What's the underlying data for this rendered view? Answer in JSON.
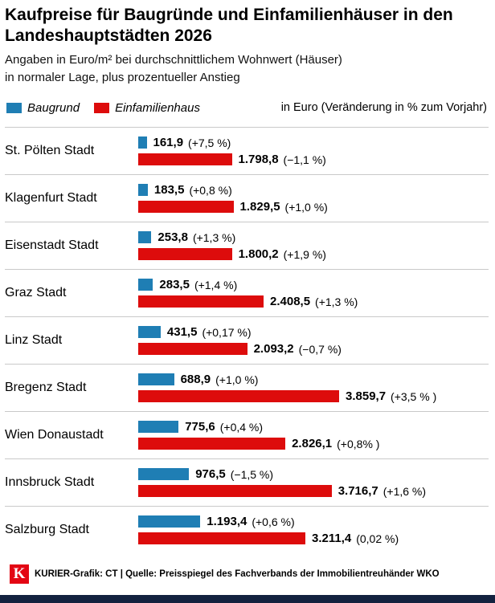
{
  "header": {
    "title": "Kaufpreise für Baugründe und Einfamilienhäuser in den Landeshauptstädten 2026",
    "subtitle_line1": "Angaben in Euro/m² bei durchschnittlichem Wohnwert (Häuser)",
    "subtitle_line2": "in normaler Lage, plus prozentueller Anstieg"
  },
  "legend": {
    "series1_label": "Baugrund",
    "series2_label": "Einfamilienhaus",
    "note": "in Euro (Veränderung in % zum Vorjahr)"
  },
  "colors": {
    "baugrund": "#1f7eb4",
    "einfamilienhaus": "#dd0c0c",
    "separator": "#c9c9c9",
    "logo_red": "#e30613",
    "bottom_strip": "#13223f"
  },
  "chart_data": {
    "type": "bar",
    "orientation": "horizontal",
    "title": "Kaufpreise für Baugründe und Einfamilienhäuser in den Landeshauptstädten 2026",
    "unit": "Euro/m²",
    "xlim": [
      0,
      3859.7
    ],
    "legend_position": "top",
    "grid": false,
    "categories": [
      "St. Pölten Stadt",
      "Klagenfurt Stadt",
      "Eisenstadt Stadt",
      "Graz Stadt",
      "Linz Stadt",
      "Bregenz Stadt",
      "Wien Donaustadt",
      "Innsbruck Stadt",
      "Salzburg Stadt"
    ],
    "series": [
      {
        "name": "Baugrund",
        "color": "#1f7eb4",
        "values": [
          161.9,
          183.5,
          253.8,
          283.5,
          431.5,
          688.9,
          775.6,
          976.5,
          1193.4
        ],
        "change_pct": [
          7.5,
          0.8,
          1.3,
          1.4,
          0.17,
          1.0,
          0.4,
          -1.5,
          0.6
        ]
      },
      {
        "name": "Einfamilienhaus",
        "color": "#dd0c0c",
        "values": [
          1798.8,
          1829.5,
          1800.2,
          2408.5,
          2093.2,
          3859.7,
          2826.1,
          3716.7,
          3211.4
        ],
        "change_pct": [
          -1.1,
          1.0,
          1.9,
          1.3,
          -0.7,
          3.5,
          0.8,
          1.6,
          0.02
        ]
      }
    ]
  },
  "rows": [
    {
      "city": "St. Pölten Stadt",
      "baugrund_value": 161.9,
      "baugrund_label": "161,9",
      "baugrund_change": "(+7,5 %)",
      "haus_value": 1798.8,
      "haus_label": "1.798,8",
      "haus_change": "(−1,1 %)"
    },
    {
      "city": "Klagenfurt Stadt",
      "baugrund_value": 183.5,
      "baugrund_label": "183,5",
      "baugrund_change": "(+0,8 %)",
      "haus_value": 1829.5,
      "haus_label": "1.829,5",
      "haus_change": "(+1,0 %)"
    },
    {
      "city": "Eisenstadt Stadt",
      "baugrund_value": 253.8,
      "baugrund_label": "253,8",
      "baugrund_change": "(+1,3 %)",
      "haus_value": 1800.2,
      "haus_label": "1.800,2",
      "haus_change": "(+1,9 %)"
    },
    {
      "city": "Graz Stadt",
      "baugrund_value": 283.5,
      "baugrund_label": "283,5",
      "baugrund_change": "(+1,4 %)",
      "haus_value": 2408.5,
      "haus_label": "2.408,5",
      "haus_change": "(+1,3 %)"
    },
    {
      "city": "Linz Stadt",
      "baugrund_value": 431.5,
      "baugrund_label": "431,5",
      "baugrund_change": "(+0,17 %)",
      "haus_value": 2093.2,
      "haus_label": "2.093,2",
      "haus_change": "(−0,7 %)"
    },
    {
      "city": "Bregenz Stadt",
      "baugrund_value": 688.9,
      "baugrund_label": "688,9",
      "baugrund_change": "(+1,0 %)",
      "haus_value": 3859.7,
      "haus_label": "3.859,7",
      "haus_change": "(+3,5 % )"
    },
    {
      "city": "Wien Donaustadt",
      "baugrund_value": 775.6,
      "baugrund_label": "775,6",
      "baugrund_change": "(+0,4 %)",
      "haus_value": 2826.1,
      "haus_label": "2.826,1",
      "haus_change": "(+0,8% )"
    },
    {
      "city": "Innsbruck Stadt",
      "baugrund_value": 976.5,
      "baugrund_label": "976,5",
      "baugrund_change": "(−1,5 %)",
      "haus_value": 3716.7,
      "haus_label": "3.716,7",
      "haus_change": "(+1,6 %)"
    },
    {
      "city": "Salzburg Stadt",
      "baugrund_value": 1193.4,
      "baugrund_label": "1.193,4",
      "baugrund_change": "(+0,6 %)",
      "haus_value": 3211.4,
      "haus_label": "3.211,4",
      "haus_change": "(0,02 %)"
    }
  ],
  "footer": {
    "logo_letter": "K",
    "text": "KURIER-Grafik: CT | Quelle: Preisspiegel des Fachverbands der Immobilientreuhänder WKO"
  }
}
